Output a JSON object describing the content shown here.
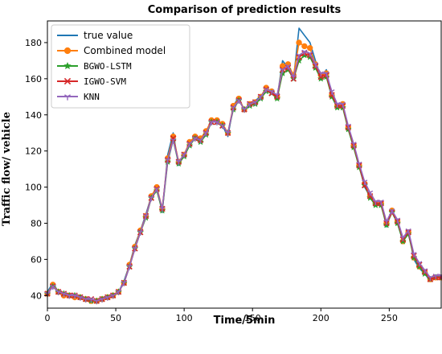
{
  "chart_data": {
    "type": "line",
    "title": "Comparison of prediction results",
    "xlabel": "Time/5min",
    "ylabel": "Traffic flow/ vehicle",
    "xlim": [
      0,
      288
    ],
    "ylim": [
      33,
      192
    ],
    "xticks": [
      0,
      50,
      100,
      150,
      200,
      250
    ],
    "yticks": [
      40,
      60,
      80,
      100,
      120,
      140,
      160,
      180
    ],
    "legend_position": "top-left",
    "x": [
      0,
      4,
      8,
      12,
      16,
      20,
      24,
      28,
      32,
      36,
      40,
      44,
      48,
      52,
      56,
      60,
      64,
      68,
      72,
      76,
      80,
      84,
      88,
      92,
      96,
      100,
      104,
      108,
      112,
      116,
      120,
      124,
      128,
      132,
      136,
      140,
      144,
      148,
      152,
      156,
      160,
      164,
      168,
      172,
      176,
      180,
      184,
      188,
      192,
      196,
      200,
      204,
      208,
      212,
      216,
      220,
      224,
      228,
      232,
      236,
      240,
      244,
      248,
      252,
      256,
      260,
      264,
      268,
      272,
      276,
      280,
      284,
      288
    ],
    "series": [
      {
        "name": "true value",
        "color": "#1f77b4",
        "marker": "none",
        "values": [
          42,
          47,
          42,
          41,
          40,
          40,
          39,
          38,
          37,
          37,
          38,
          39,
          40,
          42,
          48,
          57,
          68,
          76,
          85,
          95,
          100,
          86,
          118,
          130,
          112,
          118,
          124,
          128,
          126,
          130,
          138,
          136,
          134,
          128,
          145,
          150,
          142,
          146,
          148,
          150,
          155,
          152,
          149,
          170,
          166,
          160,
          188,
          184,
          180,
          170,
          160,
          165,
          150,
          144,
          145,
          132,
          122,
          112,
          100,
          95,
          90,
          92,
          78,
          88,
          80,
          70,
          76,
          60,
          55,
          52,
          48,
          50,
          50
        ]
      },
      {
        "name": "Combined model",
        "color": "#ff7f0e",
        "marker": "circle",
        "values": [
          41,
          46,
          42,
          40,
          40,
          39,
          39,
          38,
          37,
          37,
          38,
          39,
          40,
          42,
          47,
          57,
          67,
          76,
          84,
          95,
          100,
          88,
          116,
          128,
          114,
          118,
          125,
          128,
          127,
          131,
          137,
          137,
          135,
          130,
          145,
          149,
          143,
          146,
          147,
          150,
          155,
          153,
          150,
          167,
          168,
          162,
          180,
          178,
          177,
          168,
          162,
          163,
          151,
          145,
          146,
          133,
          123,
          112,
          102,
          95,
          91,
          91,
          80,
          87,
          81,
          70,
          75,
          61,
          56,
          53,
          49,
          50,
          50
        ]
      },
      {
        "name": "BGWO-LSTM",
        "color": "#2ca02c",
        "marker": "star",
        "values": [
          41,
          45,
          42,
          41,
          40,
          40,
          39,
          38,
          37,
          37,
          38,
          39,
          40,
          42,
          47,
          56,
          66,
          75,
          83,
          94,
          98,
          87,
          114,
          126,
          113,
          117,
          123,
          127,
          125,
          129,
          136,
          136,
          134,
          130,
          143,
          148,
          143,
          145,
          146,
          149,
          153,
          152,
          149,
          163,
          165,
          160,
          170,
          173,
          172,
          166,
          160,
          161,
          150,
          144,
          144,
          132,
          122,
          111,
          101,
          94,
          90,
          90,
          79,
          86,
          80,
          70,
          74,
          61,
          56,
          52,
          49,
          50,
          50
        ]
      },
      {
        "name": "IGWO-SVM",
        "color": "#d62728",
        "marker": "x",
        "values": [
          41,
          45,
          42,
          41,
          40,
          40,
          39,
          38,
          38,
          37,
          38,
          39,
          40,
          42,
          47,
          56,
          66,
          75,
          84,
          94,
          99,
          88,
          115,
          127,
          114,
          118,
          124,
          127,
          126,
          130,
          136,
          136,
          134,
          130,
          144,
          148,
          143,
          146,
          147,
          150,
          154,
          152,
          150,
          165,
          166,
          160,
          172,
          174,
          173,
          167,
          161,
          162,
          151,
          145,
          145,
          133,
          123,
          112,
          101,
          95,
          91,
          91,
          80,
          86,
          81,
          71,
          75,
          62,
          57,
          53,
          49,
          50,
          50
        ]
      },
      {
        "name": "KNN",
        "color": "#9467bd",
        "marker": "tri",
        "values": [
          41,
          45,
          42,
          41,
          40,
          40,
          39,
          38,
          38,
          37,
          38,
          39,
          40,
          42,
          47,
          56,
          66,
          75,
          84,
          94,
          99,
          88,
          115,
          126,
          114,
          118,
          124,
          127,
          126,
          130,
          136,
          136,
          134,
          130,
          144,
          148,
          143,
          146,
          147,
          150,
          154,
          153,
          151,
          165,
          167,
          161,
          173,
          175,
          174,
          168,
          163,
          163,
          153,
          146,
          146,
          134,
          124,
          113,
          103,
          97,
          92,
          92,
          81,
          87,
          82,
          72,
          76,
          63,
          58,
          54,
          50,
          51,
          51
        ]
      }
    ]
  }
}
